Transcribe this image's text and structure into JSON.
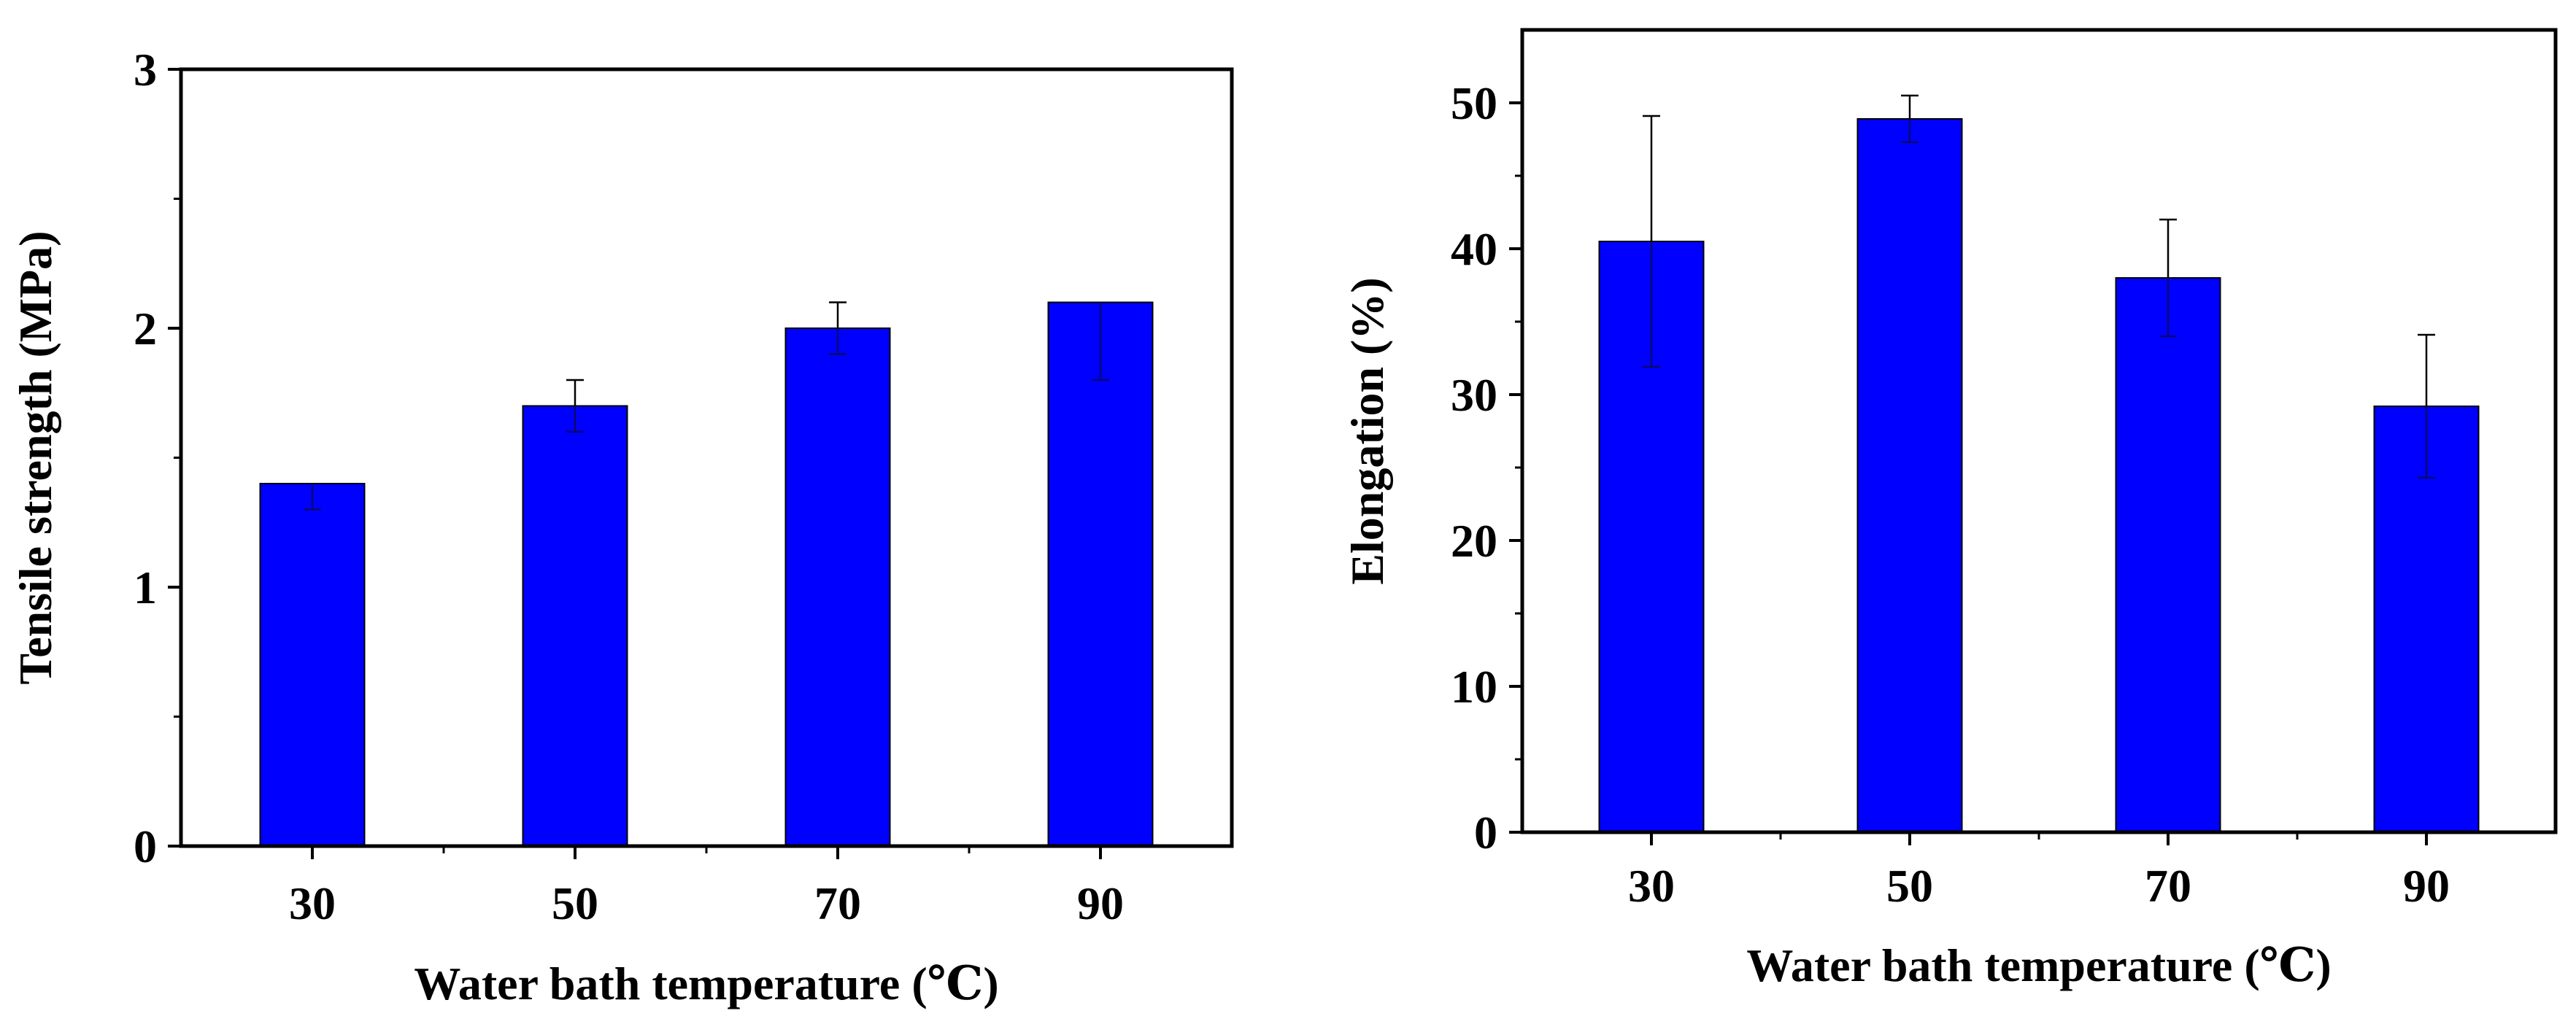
{
  "chart_data": [
    {
      "type": "bar",
      "title": "",
      "categories": [
        "30",
        "50",
        "70",
        "90"
      ],
      "values": [
        1.4,
        1.7,
        2.0,
        2.1
      ],
      "error_upper": [
        0.0,
        0.1,
        0.1,
        0.0
      ],
      "error_lower": [
        0.1,
        0.1,
        0.1,
        0.3
      ],
      "xlabel": "Water bath temperature (℃)",
      "ylabel": "Tensile strength (MPa)",
      "ylim": [
        0,
        3
      ],
      "yticks": [
        "0",
        "1",
        "2",
        "3"
      ],
      "minor_ticks": true,
      "grid": false,
      "legend": "none",
      "bar_color": "#0000ff"
    },
    {
      "type": "bar",
      "title": "",
      "categories": [
        "30",
        "50",
        "70",
        "90"
      ],
      "values": [
        40.5,
        48.9,
        38.0,
        29.2
      ],
      "error_upper": [
        8.6,
        1.6,
        4.0,
        4.9
      ],
      "error_lower": [
        8.6,
        1.6,
        4.0,
        4.9
      ],
      "xlabel": "Water bath temperature (℃)",
      "ylabel": "Elongation (%)",
      "ylim": [
        0,
        55
      ],
      "yticks": [
        "0",
        "10",
        "20",
        "30",
        "40",
        "50"
      ],
      "minor_ticks": true,
      "grid": false,
      "legend": "none",
      "bar_color": "#0000ff"
    }
  ]
}
